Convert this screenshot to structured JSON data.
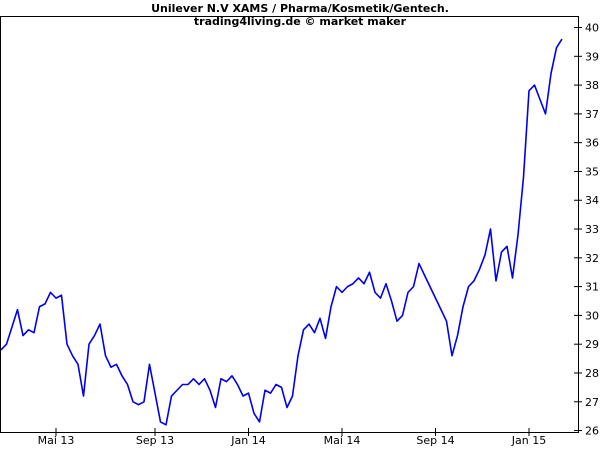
{
  "chart_data": {
    "type": "line",
    "title": "Unilever N.V XAMS / Pharma/Kosmetik/Gentech.",
    "subtitle": "trading4living.de © market maker",
    "categories": [
      null,
      null,
      null,
      null,
      null,
      null,
      null,
      null,
      null,
      null,
      "Mai 13",
      null,
      null,
      null,
      null,
      null,
      null,
      null,
      null,
      null,
      null,
      null,
      null,
      null,
      null,
      null,
      null,
      null,
      "Sep 13",
      null,
      null,
      null,
      null,
      null,
      null,
      null,
      null,
      null,
      null,
      null,
      null,
      null,
      null,
      null,
      null,
      "Jan 14",
      null,
      null,
      null,
      null,
      null,
      null,
      null,
      null,
      null,
      null,
      null,
      null,
      null,
      null,
      null,
      null,
      "Mai 14",
      null,
      null,
      null,
      null,
      null,
      null,
      null,
      null,
      null,
      null,
      null,
      null,
      null,
      null,
      null,
      null,
      "Sep 14",
      null,
      null,
      null,
      null,
      null,
      null,
      null,
      null,
      null,
      null,
      null,
      null,
      null,
      null,
      null,
      null,
      "Jan 15",
      null,
      null,
      null,
      null,
      null,
      null
    ],
    "series": [
      {
        "name": "Unilever N.V XAMS",
        "color": "#0000ee",
        "values": [
          28.8,
          29.0,
          29.6,
          30.2,
          29.3,
          29.5,
          29.4,
          30.3,
          30.4,
          30.8,
          30.6,
          30.7,
          29.0,
          28.6,
          28.3,
          27.2,
          29.0,
          29.3,
          29.7,
          28.6,
          28.2,
          28.3,
          27.9,
          27.6,
          27.0,
          26.9,
          27.0,
          28.3,
          27.3,
          26.3,
          26.2,
          27.2,
          27.4,
          27.6,
          27.6,
          27.8,
          27.6,
          27.8,
          27.4,
          26.8,
          27.8,
          27.7,
          27.9,
          27.6,
          27.2,
          27.3,
          26.6,
          26.3,
          27.4,
          27.3,
          27.6,
          27.5,
          26.8,
          27.2,
          28.6,
          29.5,
          29.7,
          29.4,
          29.9,
          29.2,
          30.3,
          31.0,
          30.8,
          31.0,
          31.1,
          31.3,
          31.1,
          31.5,
          30.8,
          30.6,
          31.1,
          30.5,
          29.8,
          30.0,
          30.8,
          31.0,
          31.8,
          31.4,
          31.0,
          30.6,
          30.2,
          29.8,
          28.6,
          29.3,
          30.3,
          31.0,
          31.2,
          31.6,
          32.1,
          33.0,
          31.2,
          32.2,
          32.4,
          31.3,
          32.8,
          34.8,
          37.8,
          38.0,
          37.5,
          37.0,
          38.4,
          39.3,
          39.6
        ]
      }
    ],
    "ylim": [
      25.95,
      40.4
    ],
    "yticks": [
      26,
      27,
      28,
      29,
      30,
      31,
      32,
      33,
      34,
      35,
      36,
      37,
      38,
      39,
      40
    ]
  }
}
